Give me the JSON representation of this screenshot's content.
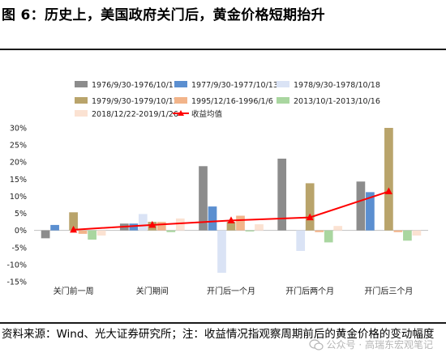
{
  "header": {
    "title": "图 6：历史上，美国政府关门后，黄金价格短期抬升"
  },
  "footer": {
    "source": "资料来源：Wind、光大证券研究所；注：收益情况指观察周期前后的黄金价格的变动幅度",
    "watermark": "公众号 · 高瑞东宏观笔记"
  },
  "chart_data": {
    "type": "bar",
    "categories": [
      "关门前一周",
      "关门期间",
      "开门后一个月",
      "开门后两个月",
      "开门后三个月"
    ],
    "ylim": [
      -0.15,
      0.3
    ],
    "yticks": [
      "-15%",
      "-10%",
      "-5%",
      "0%",
      "5%",
      "10%",
      "15%",
      "20%",
      "25%",
      "30%"
    ],
    "ytick_values": [
      -0.15,
      -0.1,
      -0.05,
      0,
      0.05,
      0.1,
      0.15,
      0.2,
      0.25,
      0.3
    ],
    "legend_position": "top",
    "series": [
      {
        "name": "1976/9/30-1976/10/11",
        "color": "#8c8c8c",
        "values": [
          -0.023,
          0.02,
          0.188,
          0.21,
          0.143
        ]
      },
      {
        "name": "1977/9/30-1977/10/13",
        "color": "#5b8fd0",
        "values": [
          0.016,
          0.02,
          0.07,
          0.0,
          0.112
        ]
      },
      {
        "name": "1978/9/30-1978/10/18",
        "color": "#dae3f5",
        "values": [
          0.0,
          0.048,
          -0.124,
          -0.06,
          0.0
        ]
      },
      {
        "name": "1979/9/30-1979/10/12",
        "color": "#b9a46b",
        "values": [
          0.053,
          0.025,
          0.025,
          0.138,
          0.3
        ]
      },
      {
        "name": "1995/12/16-1996/1/6",
        "color": "#f2b48a",
        "values": [
          -0.01,
          0.025,
          0.043,
          -0.005,
          -0.005
        ]
      },
      {
        "name": "2013/10/1-2013/10/16",
        "color": "#a9d6a0",
        "values": [
          -0.027,
          -0.005,
          -0.003,
          -0.035,
          -0.03
        ]
      },
      {
        "name": "2018/12/22-2019/1/26",
        "color": "#fbe2d2",
        "values": [
          -0.015,
          0.035,
          0.018,
          0.013,
          -0.015
        ]
      }
    ],
    "line": {
      "name": "收益均值",
      "color": "#ff0000",
      "values": [
        0.002,
        0.016,
        0.029,
        0.038,
        0.114
      ]
    }
  }
}
